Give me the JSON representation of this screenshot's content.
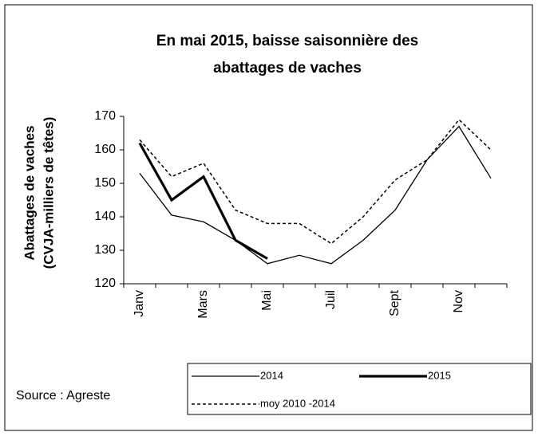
{
  "chart_data": {
    "type": "line",
    "title": [
      "En mai 2015,  baisse saisonnière des",
      "abattages de vaches"
    ],
    "y_label": [
      "Abattages de vaches",
      "(CVJA-milliers de  têtes)"
    ],
    "source": "Source : Agreste",
    "categories": [
      "Janv",
      null,
      "Mars",
      null,
      "Mai",
      null,
      "Juil",
      null,
      "Sept",
      null,
      "Nov",
      null
    ],
    "series": [
      {
        "name": "2014",
        "color": "#000000",
        "style": "thin",
        "values": [
          153,
          140.5,
          138.5,
          133,
          126,
          128.5,
          126,
          133,
          142,
          157,
          167,
          151.5
        ]
      },
      {
        "name": "2015",
        "color": "#000000",
        "style": "bold",
        "values": [
          162,
          145,
          152,
          133,
          127.5,
          null,
          null,
          null,
          null,
          null,
          null,
          null
        ]
      },
      {
        "name": "moy 2010 -2014",
        "color": "#000000",
        "style": "dashed",
        "values": [
          163,
          152,
          156,
          142,
          138,
          138,
          132,
          140,
          151,
          157,
          169,
          160
        ]
      }
    ],
    "ylim": [
      120,
      170
    ],
    "yticks": [
      120,
      130,
      140,
      150,
      160,
      170
    ],
    "grid": false
  }
}
